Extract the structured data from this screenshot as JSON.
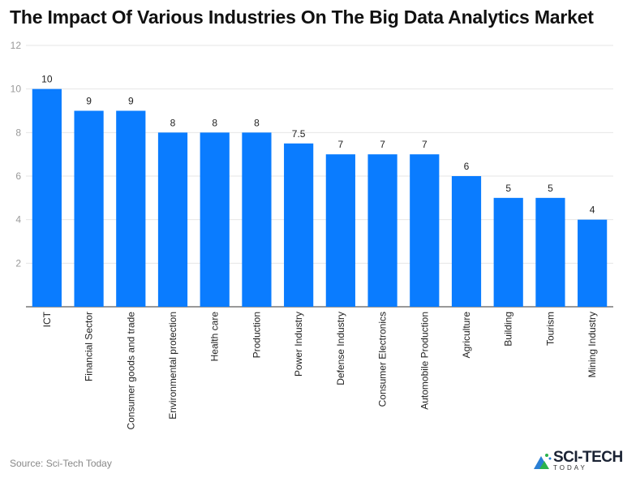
{
  "chart_data": {
    "type": "bar",
    "title": "The Impact Of Various Industries On The Big Data Analytics Market",
    "categories": [
      "ICT",
      "Financial Sector",
      "Consumer goods and trade",
      "Environmental protection",
      "Health care",
      "Production",
      "Power Industry",
      "Defense Industry",
      "Consumer Electronics",
      "Automobile Production",
      "Agriculture",
      "Building",
      "Tourism",
      "Mining Industry"
    ],
    "values": [
      10,
      9,
      9,
      8,
      8,
      8,
      7.5,
      7,
      7,
      7,
      6,
      5,
      5,
      4
    ],
    "ylim": [
      0,
      12
    ],
    "yticks": [
      2,
      4,
      6,
      8,
      10,
      12
    ],
    "grid": true,
    "bar_color": "#0a7cff",
    "xlabel": "",
    "ylabel": ""
  },
  "footer": {
    "source": "Source: Sci-Tech Today"
  },
  "logo": {
    "line1": "SCI-TECH",
    "line2": "TODAY"
  }
}
